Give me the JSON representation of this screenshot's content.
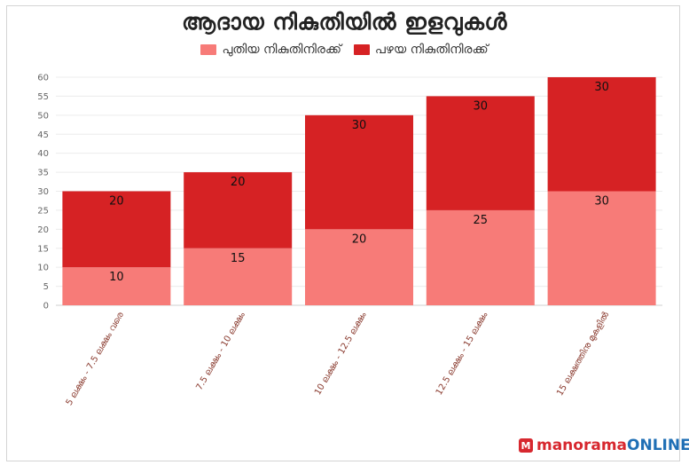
{
  "chart_data": {
    "type": "bar",
    "stacked": true,
    "title": "ആദായ നികുതിയിൽ ഇളവുകൾ",
    "categories": [
      "5 ലക്ഷം - 7.5 ലക്ഷം വരെ",
      "7.5 ലക്ഷം - 10 ലക്ഷം",
      "10 ലക്ഷം - 12.5 ലക്ഷം",
      "12.5 ലക്ഷം - 15 ലക്ഷം",
      "15 ലക്ഷത്തിനു മുകളിൽ"
    ],
    "series": [
      {
        "name": "പുതിയ നികുതിനിരക്ക്",
        "color": "#f77b78",
        "values": [
          10,
          15,
          20,
          25,
          30
        ]
      },
      {
        "name": "പഴയ നികുതിനിരക്ക്",
        "color": "#d62224",
        "values": [
          20,
          20,
          30,
          30,
          30
        ]
      }
    ],
    "yticks": [
      0,
      5,
      10,
      15,
      20,
      25,
      30,
      35,
      40,
      45,
      50,
      55,
      60
    ],
    "ylim": [
      0,
      60
    ],
    "xlabel": "",
    "ylabel": "",
    "grid": true,
    "legend_position": "top"
  },
  "brand": {
    "badge": "M",
    "name_main": "manorama",
    "name_suffix": "ONLINE",
    "accent": "#d7282f",
    "secondary": "#1f6fb5"
  }
}
